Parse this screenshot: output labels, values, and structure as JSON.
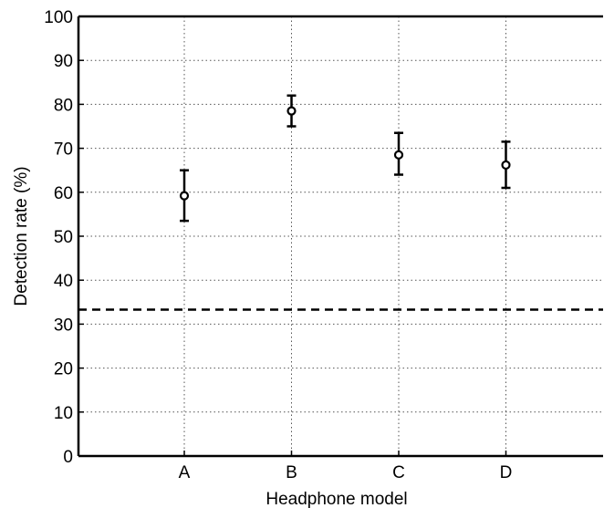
{
  "chart_data": {
    "type": "scatter",
    "title": "",
    "xlabel": "Headphone model",
    "ylabel": "Detection rate (%)",
    "categories": [
      "A",
      "B",
      "C",
      "D"
    ],
    "ylim": [
      0,
      100
    ],
    "yticks": [
      0,
      10,
      20,
      30,
      40,
      50,
      60,
      70,
      80,
      90,
      100
    ],
    "grid": true,
    "series": [
      {
        "values": [
          59.2,
          78.5,
          68.5,
          66.2
        ],
        "lower": [
          53.5,
          75.0,
          64.0,
          61.0
        ],
        "upper": [
          65.0,
          82.0,
          73.5,
          71.5
        ],
        "marker": "open-circle",
        "color": "#000000"
      }
    ],
    "reference_line": {
      "y": 33.3,
      "style": "dashed",
      "color": "#000000"
    }
  }
}
